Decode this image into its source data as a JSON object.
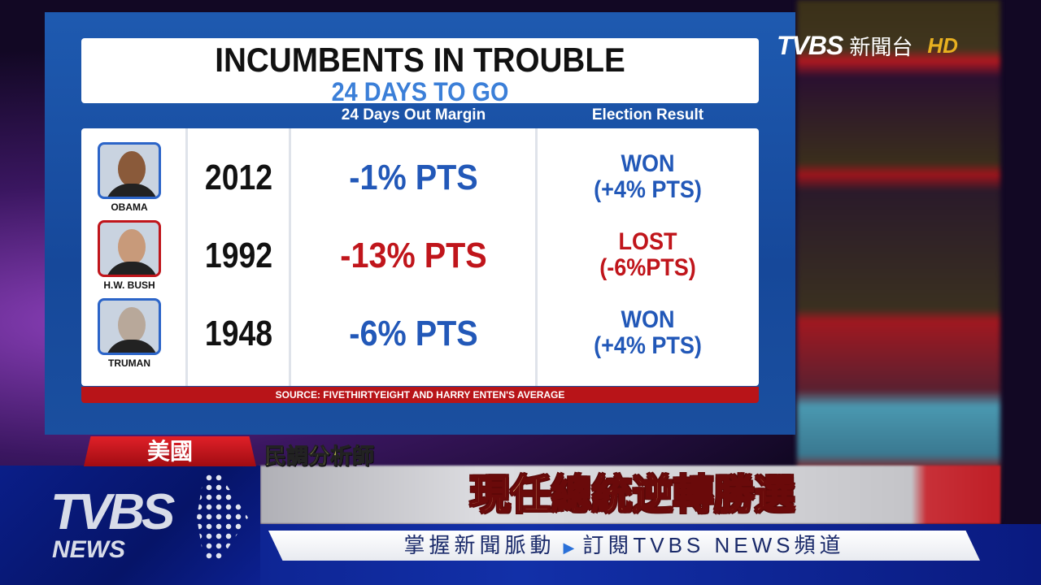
{
  "graphic": {
    "title": "INCUMBENTS IN TROUBLE",
    "subtitle": "24 DAYS TO GO",
    "column_headers": [
      "24 Days Out Margin",
      "Election Result"
    ],
    "rows": [
      {
        "name": "OBAMA",
        "year": "2012",
        "margin": "-1% PTS",
        "result_line1": "WON",
        "result_line2": "(+4% PTS)",
        "color": "#2258b8"
      },
      {
        "name": "H.W. BUSH",
        "year": "1992",
        "margin": "-13% PTS",
        "result_line1": "LOST",
        "result_line2": "(-6%PTS)",
        "color": "#c0151b"
      },
      {
        "name": "TRUMAN",
        "year": "1948",
        "margin": "-6% PTS",
        "result_line1": "WON",
        "result_line2": "(+4% PTS)",
        "color": "#2258b8"
      }
    ],
    "source": "SOURCE: FIVETHIRTYEIGHT AND HARRY ENTEN'S AVERAGE"
  },
  "channel_logo": {
    "brand": "TVBS",
    "name": "新聞台",
    "badge": "HD"
  },
  "lower_third": {
    "location_tag": "美國",
    "speaker": "民調分析師",
    "headline": "現任總統逆轉勝選",
    "ticker_left": "掌握新聞脈動",
    "ticker_right": "訂閱TVBS NEWS頻道",
    "logo_brand": "TVBS",
    "logo_sub": "NEWS"
  }
}
